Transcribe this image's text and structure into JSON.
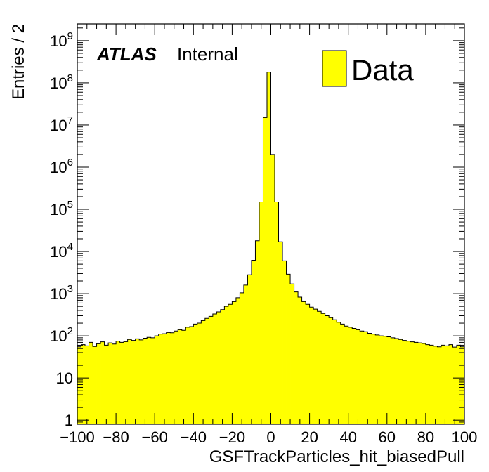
{
  "colors": {
    "fill": "#ffff00",
    "line": "#000000",
    "background": "#ffffff"
  },
  "chart_data": {
    "type": "bar",
    "xlabel": "GSFTrackParticles_hit_biasedPull",
    "ylabel": "Entries / 2",
    "xlim": [
      -100,
      100
    ],
    "ylim": [
      0.8,
      2500000000
    ],
    "yscale": "log",
    "bin_width": 2,
    "grid": false,
    "legend": {
      "position": "top-right",
      "entries": [
        {
          "label": "Data",
          "color": "#ffff00"
        }
      ]
    },
    "experiment_label": "ATLAS",
    "experiment_status": "Internal",
    "x_ticks": [
      {
        "value": -100,
        "label": "−100"
      },
      {
        "value": -80,
        "label": "−80"
      },
      {
        "value": -60,
        "label": "−60"
      },
      {
        "value": -40,
        "label": "−40"
      },
      {
        "value": -20,
        "label": "−20"
      },
      {
        "value": 0,
        "label": "0"
      },
      {
        "value": 20,
        "label": "20"
      },
      {
        "value": 40,
        "label": "40"
      },
      {
        "value": 60,
        "label": "60"
      },
      {
        "value": 80,
        "label": "80"
      },
      {
        "value": 100,
        "label": "100"
      }
    ],
    "y_ticks": [
      {
        "value": 1,
        "base": "1",
        "exp": ""
      },
      {
        "value": 10,
        "base": "10",
        "exp": ""
      },
      {
        "value": 100,
        "base": "10",
        "exp": "2"
      },
      {
        "value": 1000,
        "base": "10",
        "exp": "3"
      },
      {
        "value": 10000,
        "base": "10",
        "exp": "4"
      },
      {
        "value": 100000,
        "base": "10",
        "exp": "5"
      },
      {
        "value": 1000000,
        "base": "10",
        "exp": "6"
      },
      {
        "value": 10000000,
        "base": "10",
        "exp": "7"
      },
      {
        "value": 100000000,
        "base": "10",
        "exp": "8"
      },
      {
        "value": 1000000000,
        "base": "10",
        "exp": "9"
      }
    ],
    "bins": {
      "x_low": [
        -100,
        -98,
        -96,
        -94,
        -92,
        -90,
        -88,
        -86,
        -84,
        -82,
        -80,
        -78,
        -76,
        -74,
        -72,
        -70,
        -68,
        -66,
        -64,
        -62,
        -60,
        -58,
        -56,
        -54,
        -52,
        -50,
        -48,
        -46,
        -44,
        -42,
        -40,
        -38,
        -36,
        -34,
        -32,
        -30,
        -28,
        -26,
        -24,
        -22,
        -20,
        -18,
        -16,
        -14,
        -12,
        -10,
        -8,
        -6,
        -4,
        -2,
        0,
        2,
        4,
        6,
        8,
        10,
        12,
        14,
        16,
        18,
        20,
        22,
        24,
        26,
        28,
        30,
        32,
        34,
        36,
        38,
        40,
        42,
        44,
        46,
        48,
        50,
        52,
        54,
        56,
        58,
        60,
        62,
        64,
        66,
        68,
        70,
        72,
        74,
        76,
        78,
        80,
        82,
        84,
        86,
        88,
        90,
        92,
        94,
        96,
        98
      ],
      "values": [
        55,
        62,
        58,
        70,
        56,
        65,
        72,
        60,
        68,
        64,
        75,
        70,
        73,
        82,
        78,
        85,
        80,
        88,
        92,
        90,
        100,
        110,
        112,
        120,
        118,
        130,
        140,
        135,
        160,
        165,
        190,
        200,
        230,
        260,
        290,
        330,
        370,
        420,
        500,
        560,
        650,
        800,
        1050,
        1600,
        2800,
        6200,
        18000,
        150000,
        15000000,
        180000000,
        2000000,
        150000,
        17000,
        6000,
        2900,
        1700,
        1100,
        830,
        650,
        560,
        480,
        430,
        380,
        340,
        300,
        270,
        240,
        210,
        190,
        170,
        160,
        150,
        140,
        130,
        125,
        115,
        110,
        105,
        100,
        98,
        95,
        90,
        86,
        82,
        78,
        75,
        72,
        70,
        68,
        66,
        62,
        60,
        57,
        55,
        60,
        58,
        62,
        54,
        60,
        55
      ]
    }
  }
}
